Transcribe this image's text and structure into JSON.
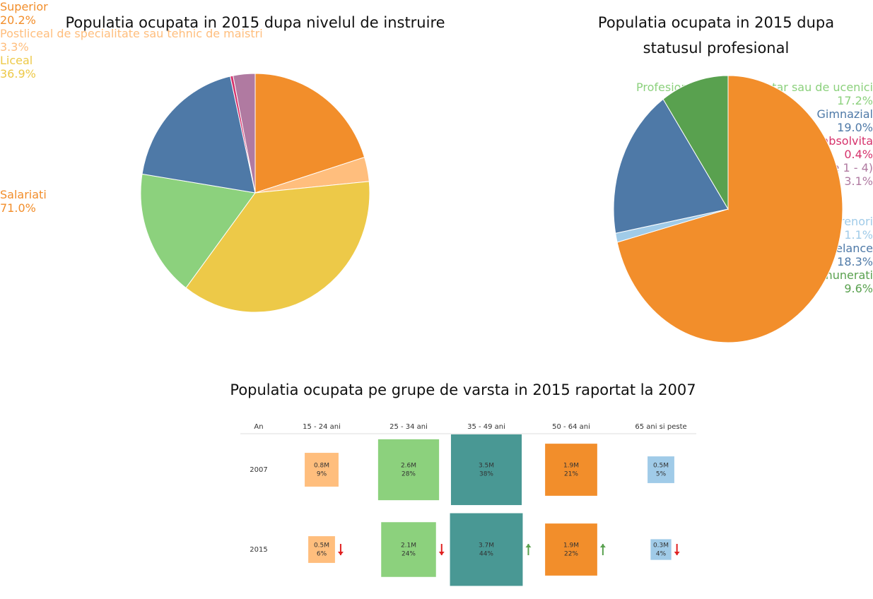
{
  "chart_data": [
    {
      "type": "pie",
      "title": "Populatia ocupata in 2015 dupa nivelul de instruire",
      "categories": [
        "Superior",
        "Postliceal de specialitate sau tehnic de maistri",
        "Liceal",
        "Profesional, complementar sau de ucenici",
        "Gimnazial",
        "Fara scoala absolvita",
        "Primar (clasele 1 - 4)"
      ],
      "values": [
        20.2,
        3.3,
        36.9,
        17.2,
        19.0,
        0.4,
        3.1
      ],
      "value_labels": [
        "20.2%",
        "3.3%",
        "36.9%",
        "17.2%",
        "19.0%",
        "0.4%",
        "3.1%"
      ],
      "colors": [
        "#f28e2b",
        "#ffbe7d",
        "#edc948",
        "#8cd17d",
        "#4e79a7",
        "#d6336c",
        "#b07aa1"
      ]
    },
    {
      "type": "pie",
      "title": "Populatia ocupata in 2015 dupa statusul profesional",
      "categories": [
        "Salariati",
        "Antreprenori",
        "Freelance",
        "Lucratori familiali neremunerati"
      ],
      "values": [
        71.0,
        1.1,
        18.3,
        9.6
      ],
      "value_labels": [
        "71.0%",
        "1.1%",
        "18.3%",
        "9.6%"
      ],
      "colors": [
        "#f28e2b",
        "#a0cbe8",
        "#4e79a7",
        "#59a14f"
      ]
    },
    {
      "type": "square",
      "title": "Populatia ocupata pe grupe de varsta in 2015 raportat la 2007",
      "row_header": "An",
      "categories": [
        "15 - 24 ani",
        "25 - 34 ani",
        "35 - 49 ani",
        "50 - 64 ani",
        "65 ani si peste"
      ],
      "colors": [
        "#ffbe7d",
        "#8cd17d",
        "#499894",
        "#f28e2b",
        "#a0cbe8"
      ],
      "series": [
        {
          "name": "2007",
          "values": [
            0.8,
            2.6,
            3.5,
            1.9,
            0.5
          ],
          "value_labels": [
            "0.8M",
            "2.6M",
            "3.5M",
            "1.9M",
            "0.5M"
          ],
          "shares": [
            9,
            28,
            38,
            21,
            5
          ],
          "share_labels": [
            "9%",
            "28%",
            "38%",
            "21%",
            "5%"
          ]
        },
        {
          "name": "2015",
          "values": [
            0.5,
            2.1,
            3.7,
            1.9,
            0.3
          ],
          "value_labels": [
            "0.5M",
            "2.1M",
            "3.7M",
            "1.9M",
            "0.3M"
          ],
          "shares": [
            6,
            24,
            44,
            22,
            4
          ],
          "share_labels": [
            "6%",
            "24%",
            "44%",
            "22%",
            "4%"
          ]
        }
      ]
    }
  ]
}
